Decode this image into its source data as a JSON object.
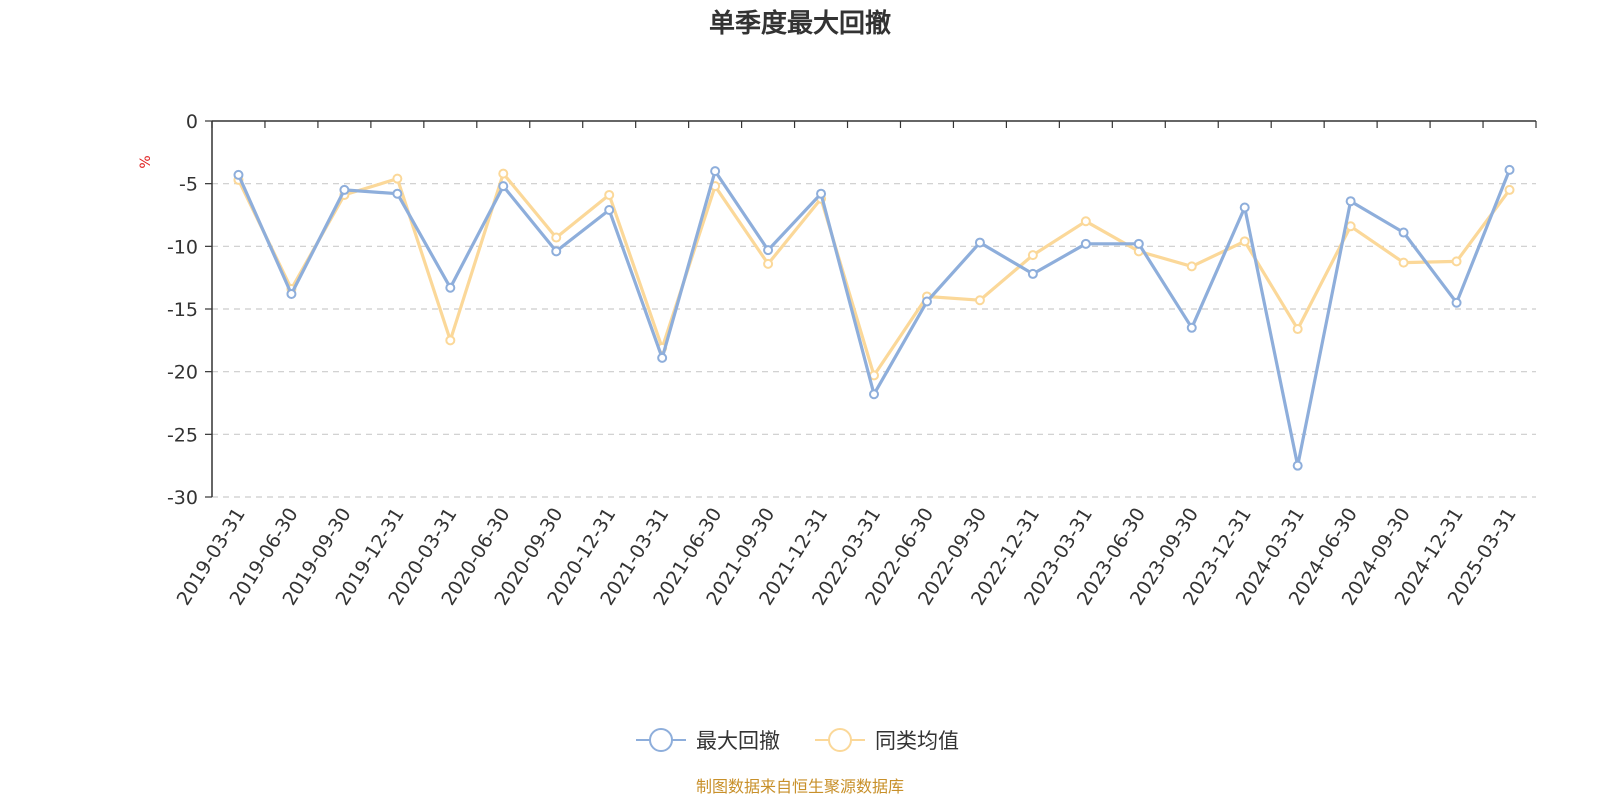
{
  "chart_data": {
    "type": "line",
    "title": "单季度最大回撤",
    "ylabel": "%",
    "ylim": [
      -30,
      0
    ],
    "yticks": [
      0,
      -5,
      -10,
      -15,
      -20,
      -25,
      -30
    ],
    "grid": true,
    "legend_position": "bottom-center",
    "categories": [
      "2019-03-31",
      "2019-06-30",
      "2019-09-30",
      "2019-12-31",
      "2020-03-31",
      "2020-06-30",
      "2020-09-30",
      "2020-12-31",
      "2021-03-31",
      "2021-06-30",
      "2021-09-30",
      "2021-12-31",
      "2022-03-31",
      "2022-06-30",
      "2022-09-30",
      "2022-12-31",
      "2023-03-31",
      "2023-06-30",
      "2023-09-30",
      "2023-12-31",
      "2024-03-31",
      "2024-06-30",
      "2024-09-30",
      "2024-12-31",
      "2025-03-31"
    ],
    "series": [
      {
        "name": "最大回撤",
        "color": "#8eaedb",
        "values": [
          -4.3,
          -13.8,
          -5.5,
          -5.8,
          -13.3,
          -5.2,
          -10.4,
          -7.1,
          -18.9,
          -4.0,
          -10.3,
          -5.8,
          -21.8,
          -14.4,
          -9.7,
          -12.2,
          -9.8,
          -9.8,
          -16.5,
          -6.9,
          -27.5,
          -6.4,
          -8.9,
          -14.5,
          -3.9
        ]
      },
      {
        "name": "同类均值",
        "color": "#fbd899",
        "values": [
          -4.7,
          -13.4,
          -5.9,
          -4.6,
          -17.5,
          -4.2,
          -9.3,
          -5.9,
          -18.1,
          -5.2,
          -11.4,
          -6.2,
          -20.3,
          -14.0,
          -14.3,
          -10.7,
          -8.0,
          -10.4,
          -11.6,
          -9.6,
          -16.6,
          -8.4,
          -11.3,
          -11.2,
          -5.5
        ]
      }
    ]
  },
  "source": {
    "text": "制图数据来自恒生聚源数据库",
    "color": "#c8902a"
  },
  "unit_color": "#e02020"
}
